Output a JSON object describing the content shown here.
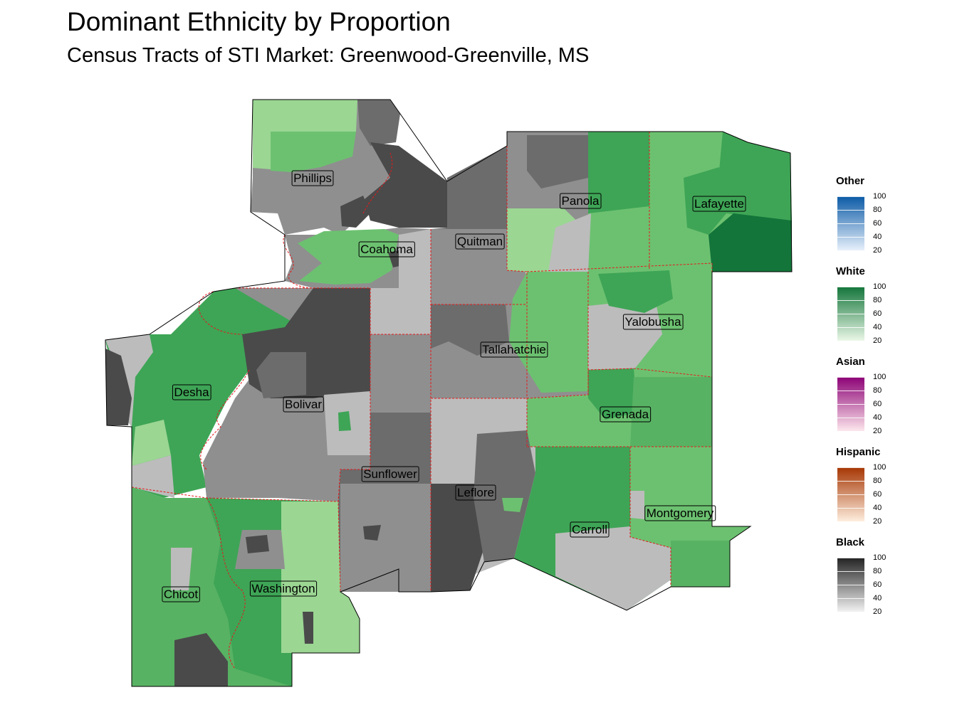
{
  "title": "Dominant Ethnicity by Proportion",
  "subtitle": "Census Tracts of STI Market: Greenwood-Greenville, MS",
  "counties": [
    "Phillips",
    "Coahoma",
    "Quitman",
    "Panola",
    "Lafayette",
    "Desha",
    "Bolivar",
    "Tallahatchie",
    "Yalobusha",
    "Grenada",
    "Sunflower",
    "Leflore",
    "Montgomery",
    "Carroll",
    "Chicot",
    "Washington"
  ],
  "legend": [
    {
      "title": "Other",
      "color_low": "#e7f0fb",
      "color_high": "#0b5aa6",
      "ticks": [
        "100",
        "80",
        "60",
        "40",
        "20"
      ]
    },
    {
      "title": "White",
      "color_low": "#eaf7e7",
      "color_high": "#13753a",
      "ticks": [
        "100",
        "80",
        "60",
        "40",
        "20"
      ]
    },
    {
      "title": "Asian",
      "color_low": "#fde7ec",
      "color_high": "#8c0276",
      "ticks": [
        "100",
        "80",
        "60",
        "40",
        "20"
      ]
    },
    {
      "title": "Hispanic",
      "color_low": "#feeede",
      "color_high": "#a63603",
      "ticks": [
        "100",
        "80",
        "60",
        "40",
        "20"
      ]
    },
    {
      "title": "Black",
      "color_low": "#f2f2f2",
      "color_high": "#222222",
      "ticks": [
        "100",
        "80",
        "60",
        "40",
        "20"
      ]
    }
  ],
  "colors": {
    "border": "#e41a1c",
    "white_light": "#9bd693",
    "white_mid": "#6cc170",
    "white_dark": "#3ea556",
    "white_darkest": "#13753a",
    "black_light": "#bcbcbc",
    "black_mid": "#8f8f8f",
    "black_dark": "#6c6c6c",
    "black_darkest": "#4a4a4a"
  }
}
